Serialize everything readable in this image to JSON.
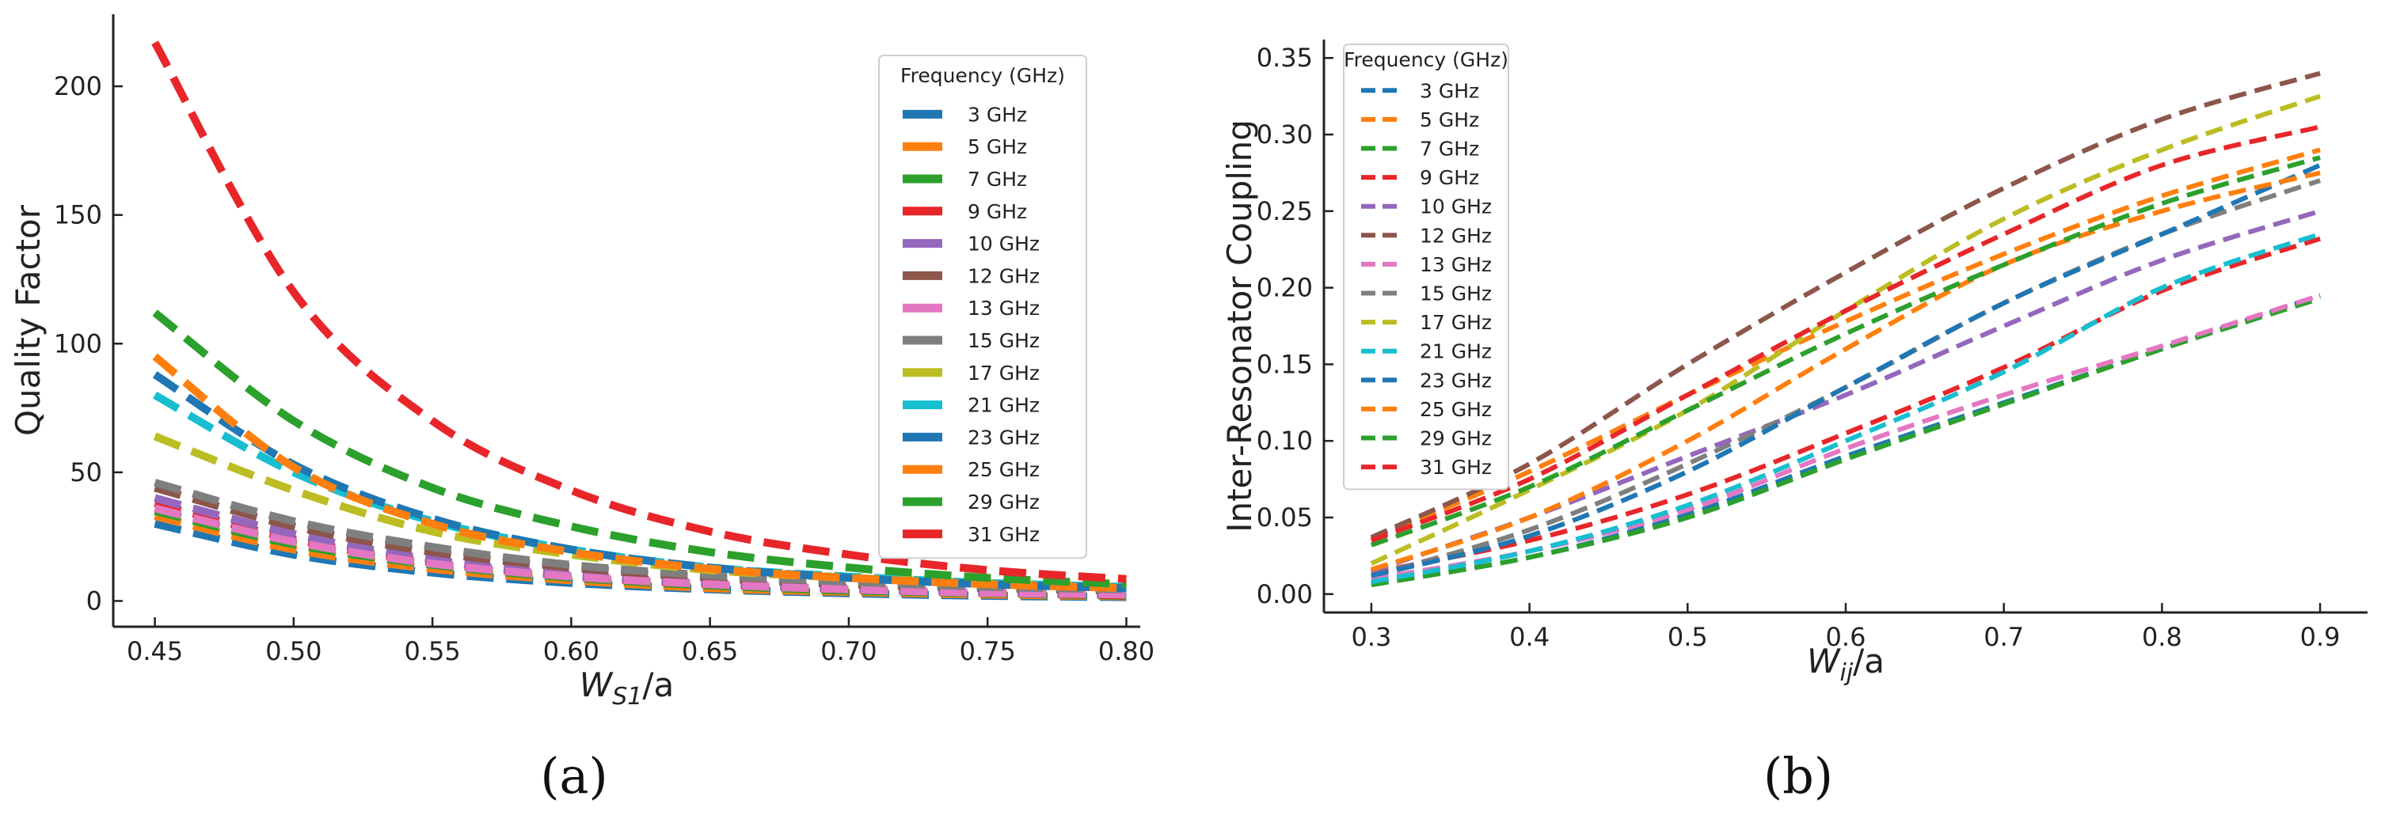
{
  "colors": {
    "3 GHz": "#1f77b4",
    "5 GHz": "#ff7f0e",
    "7 GHz": "#2ca02c",
    "9 GHz": "#e8262a",
    "10 GHz": "#9467bd",
    "12 GHz": "#8c564b",
    "13 GHz": "#e377c2",
    "15 GHz": "#7f7f7f",
    "17 GHz": "#bcbd22",
    "21 GHz": "#17becf",
    "23 GHz": "#1f77b4",
    "25 GHz": "#ff7f0e",
    "29 GHz": "#2ca02c",
    "31 GHz": "#e8262a"
  },
  "captions": {
    "a": "(a)",
    "b": "(b)"
  },
  "chart_data": [
    {
      "id": "a",
      "type": "line",
      "title": "",
      "xlabel": "W_S1/a",
      "ylabel": "Quality Factor",
      "xlim": [
        0.435,
        0.805
      ],
      "ylim": [
        -10,
        228
      ],
      "xticks": [
        0.45,
        0.5,
        0.55,
        0.6,
        0.65,
        0.7,
        0.75,
        0.8
      ],
      "xtick_labels": [
        "0.45",
        "0.50",
        "0.55",
        "0.60",
        "0.65",
        "0.70",
        "0.75",
        "0.80"
      ],
      "yticks": [
        0,
        50,
        100,
        150,
        200
      ],
      "ytick_labels": [
        "0",
        "50",
        "100",
        "150",
        "200"
      ],
      "legend_title": "Frequency (GHz)",
      "legend_position": "upper-right",
      "x": [
        0.45,
        0.5,
        0.55,
        0.6,
        0.65,
        0.7,
        0.75,
        0.8
      ],
      "series": [
        {
          "name": "3 GHz",
          "values": [
            30,
            18,
            11,
            7,
            4.5,
            3,
            2,
            1.5
          ]
        },
        {
          "name": "5 GHz",
          "values": [
            33,
            20,
            12.5,
            8,
            5,
            3.5,
            2.5,
            1.8
          ]
        },
        {
          "name": "7 GHz",
          "values": [
            35,
            22,
            14,
            9,
            6,
            4,
            3,
            2
          ]
        },
        {
          "name": "9 GHz",
          "values": [
            38,
            24,
            15,
            9.5,
            6.5,
            4.5,
            3.2,
            2.2
          ]
        },
        {
          "name": "10 GHz",
          "values": [
            40,
            26,
            16,
            10,
            7,
            5,
            3.5,
            2.5
          ]
        },
        {
          "name": "12 GHz",
          "values": [
            44,
            29,
            19,
            13,
            9,
            6.5,
            5,
            4
          ]
        },
        {
          "name": "13 GHz",
          "values": [
            36,
            23,
            14.5,
            9.5,
            6.5,
            4.5,
            3.2,
            2.5
          ]
        },
        {
          "name": "15 GHz",
          "values": [
            46,
            31,
            21,
            14,
            10,
            7.5,
            5.5,
            4.5
          ]
        },
        {
          "name": "17 GHz",
          "values": [
            64,
            43,
            27,
            18,
            12,
            9,
            7,
            5.5
          ]
        },
        {
          "name": "21 GHz",
          "values": [
            80,
            50,
            31,
            20,
            13,
            9.5,
            7,
            5.5
          ]
        },
        {
          "name": "23 GHz",
          "values": [
            88,
            53,
            32,
            20,
            13,
            9,
            6.5,
            5
          ]
        },
        {
          "name": "25 GHz",
          "values": [
            95,
            52,
            30,
            19,
            12.5,
            9,
            6.5,
            5
          ]
        },
        {
          "name": "29 GHz",
          "values": [
            112,
            70,
            44,
            29,
            19,
            13,
            9,
            6.5
          ]
        },
        {
          "name": "31 GHz",
          "values": [
            217,
            120,
            70,
            43,
            27,
            18,
            12,
            8.5
          ]
        }
      ]
    },
    {
      "id": "b",
      "type": "line",
      "title": "",
      "xlabel": "W_ij/a",
      "ylabel": "Inter-Resonator Coupling",
      "xlim": [
        0.27,
        0.93
      ],
      "ylim": [
        -0.012,
        0.362
      ],
      "xticks": [
        0.3,
        0.4,
        0.5,
        0.6,
        0.7,
        0.8,
        0.9
      ],
      "xtick_labels": [
        "0.3",
        "0.4",
        "0.5",
        "0.6",
        "0.7",
        "0.8",
        "0.9"
      ],
      "yticks": [
        0,
        0.05,
        0.1,
        0.15,
        0.2,
        0.25,
        0.3,
        0.35
      ],
      "ytick_labels": [
        "0.00",
        "0.05",
        "0.10",
        "0.15",
        "0.20",
        "0.25",
        "0.30",
        "0.35"
      ],
      "legend_title": "Frequency (GHz)",
      "legend_position": "upper-left",
      "x": [
        0.3,
        0.4,
        0.5,
        0.6,
        0.7,
        0.8,
        0.9
      ],
      "series": [
        {
          "name": "3 GHz",
          "values": [
            0.007,
            0.024,
            0.052,
            0.09,
            0.125,
            0.16,
            0.195
          ]
        },
        {
          "name": "5 GHz",
          "values": [
            0.036,
            0.08,
            0.13,
            0.178,
            0.222,
            0.26,
            0.29
          ]
        },
        {
          "name": "7 GHz",
          "values": [
            0.006,
            0.024,
            0.05,
            0.088,
            0.124,
            0.16,
            0.193
          ]
        },
        {
          "name": "9 GHz",
          "values": [
            0.014,
            0.035,
            0.065,
            0.105,
            0.148,
            0.198,
            0.232
          ]
        },
        {
          "name": "10 GHz",
          "values": [
            0.015,
            0.05,
            0.09,
            0.13,
            0.175,
            0.218,
            0.25
          ]
        },
        {
          "name": "12 GHz",
          "values": [
            0.037,
            0.085,
            0.15,
            0.21,
            0.265,
            0.31,
            0.34
          ]
        },
        {
          "name": "13 GHz",
          "values": [
            0.01,
            0.028,
            0.055,
            0.095,
            0.13,
            0.162,
            0.195
          ]
        },
        {
          "name": "15 GHz",
          "values": [
            0.012,
            0.042,
            0.085,
            0.135,
            0.19,
            0.235,
            0.27
          ]
        },
        {
          "name": "17 GHz",
          "values": [
            0.02,
            0.068,
            0.12,
            0.185,
            0.245,
            0.29,
            0.325
          ]
        },
        {
          "name": "21 GHz",
          "values": [
            0.008,
            0.028,
            0.058,
            0.1,
            0.145,
            0.2,
            0.235
          ]
        },
        {
          "name": "23 GHz",
          "values": [
            0.012,
            0.038,
            0.08,
            0.135,
            0.19,
            0.235,
            0.28
          ]
        },
        {
          "name": "25 GHz",
          "values": [
            0.016,
            0.05,
            0.1,
            0.16,
            0.215,
            0.25,
            0.275
          ]
        },
        {
          "name": "29 GHz",
          "values": [
            0.032,
            0.07,
            0.12,
            0.17,
            0.215,
            0.255,
            0.285
          ]
        },
        {
          "name": "31 GHz",
          "values": [
            0.035,
            0.075,
            0.13,
            0.185,
            0.235,
            0.28,
            0.305
          ]
        }
      ]
    }
  ]
}
